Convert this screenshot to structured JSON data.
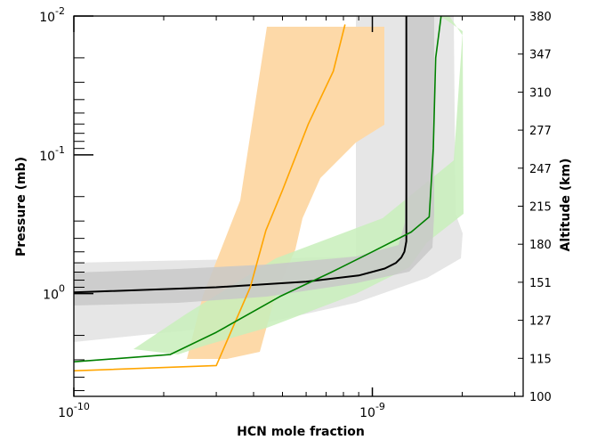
{
  "chart_data": {
    "type": "line",
    "xlabel": "HCN mole fraction",
    "ylabel": "Pressure (mb)",
    "y2label": "Altitude (km)",
    "xscale": "log",
    "yscale": "log",
    "xlim": [
      1e-10,
      3.2e-09
    ],
    "ylim_mb": [
      5.5,
      0.01
    ],
    "x_tick_labels": [
      {
        "base": "10",
        "exp": "-10",
        "value": 1e-10
      },
      {
        "base": "10",
        "exp": "-9",
        "value": 1e-09
      }
    ],
    "y_tick_labels": [
      {
        "base": "10",
        "exp": "-2",
        "value": 0.01
      },
      {
        "base": "10",
        "exp": "-1",
        "value": 0.1
      },
      {
        "base": "10",
        "exp": "0",
        "value": 1
      }
    ],
    "altitude_ticks": [
      "380",
      "347",
      "310",
      "277",
      "247",
      "215",
      "180",
      "151",
      "127",
      "115",
      "100"
    ],
    "grid": false,
    "colors": {
      "black_line": "#000000",
      "orange_line": "#ffa500",
      "green_line": "#008000",
      "orange_band": "#fdd9a8",
      "green_band": "#c8eebb",
      "gray_outer": "#e6e6e6",
      "gray_inner": "#c8c8c8"
    },
    "series": [
      {
        "color": "black",
        "x": [
          1e-10,
          3e-10,
          6e-10,
          9e-10,
          1.1e-09,
          1.2e-09,
          1.25e-09,
          1.28e-09,
          1.3e-09,
          1.3e-09,
          1.3e-09
        ],
        "y": [
          0.98,
          0.9,
          0.82,
          0.74,
          0.66,
          0.6,
          0.55,
          0.5,
          0.42,
          0.1,
          0.01
        ]
      },
      {
        "color": "orange",
        "x": [
          1e-10,
          3e-10,
          3.9e-10,
          4.4e-10,
          5e-10,
          6.1e-10,
          7.4e-10,
          8.1e-10
        ],
        "y": [
          3.6,
          3.3,
          0.9,
          0.35,
          0.18,
          0.06,
          0.025,
          0.0115
        ]
      },
      {
        "color": "green",
        "x": [
          1e-10,
          2.1e-10,
          3e-10,
          4.9e-10,
          7.3e-10,
          1e-09,
          1.35e-09,
          1.55e-09,
          1.6e-09,
          1.63e-09,
          1.7e-09
        ],
        "y": [
          3.1,
          2.75,
          1.9,
          1.05,
          0.7,
          0.5,
          0.36,
          0.28,
          0.09,
          0.02,
          0.01
        ]
      }
    ]
  }
}
